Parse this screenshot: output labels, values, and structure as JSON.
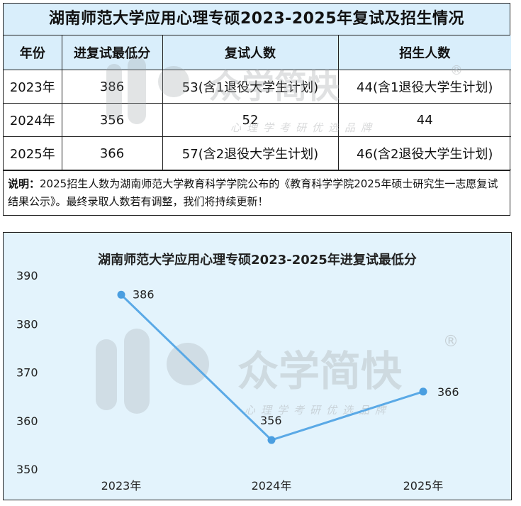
{
  "table": {
    "title": "湖南师范大学应用心理专硕2023-2025年复试及招生情况",
    "headers": [
      "年份",
      "进复试最低分",
      "复试人数",
      "招生人数"
    ],
    "rows": [
      [
        "2023年",
        "386",
        "53(含1退役大学生计划)",
        "44(含1退役大学生计划)"
      ],
      [
        "2024年",
        "356",
        "52",
        "44"
      ],
      [
        "2025年",
        "366",
        "57(含2退役大学生计划)",
        "46(含2退役大学生计划)"
      ]
    ],
    "note_label": "说明：",
    "note_text": "2025招生人数为湖南师范大学教育科学学院公布的《教育科学学院2025年硕士研究生一志愿复试结果公示》。最终录取人数若有调整，我们将持续更新！"
  },
  "watermark": {
    "brand": "众学简快",
    "registered": "®",
    "slogan": "心理学考研优选品牌"
  },
  "chart_data": {
    "type": "line",
    "title": "湖南师范大学应用心理专硕2023-2025年进复试最低分",
    "categories": [
      "2023年",
      "2024年",
      "2025年"
    ],
    "values": [
      386,
      356,
      366
    ],
    "yticks": [
      390,
      380,
      370,
      360,
      350
    ],
    "ylim": [
      350,
      390
    ],
    "grid": false,
    "colors": {
      "line": "#5aa9e6",
      "point": "#4a9ee0",
      "background": "#e3f3fc"
    }
  }
}
